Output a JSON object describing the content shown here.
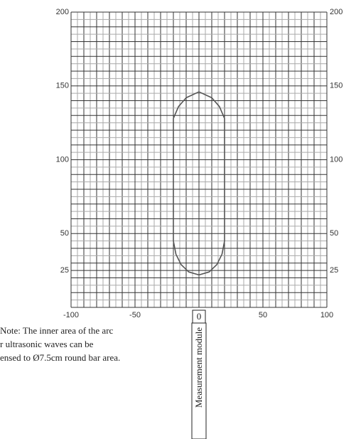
{
  "chart_data": {
    "type": "line",
    "x": [
      -20,
      -20,
      -16,
      -10,
      0,
      10,
      16,
      20,
      20,
      18,
      14,
      8,
      0,
      -8,
      -14,
      -18,
      -20
    ],
    "series": [
      {
        "name": null,
        "color": "#555555",
        "values": [
          45,
          128,
          136,
          142,
          146,
          142,
          136,
          128,
          45,
          36,
          29,
          24,
          22,
          24,
          29,
          36,
          45
        ]
      }
    ],
    "xlim": [
      -100,
      100
    ],
    "ylim": [
      0,
      200
    ],
    "xticks": [
      -100,
      -50,
      0,
      50,
      100
    ],
    "yticks": [
      25,
      50,
      100,
      150,
      200
    ],
    "grid": true,
    "annotations": [
      "Note: The inner area of the arc",
      "r ultrasonic waves can be",
      "ensed to Ø7.5cm round bar area.",
      "Measurement module"
    ]
  }
}
